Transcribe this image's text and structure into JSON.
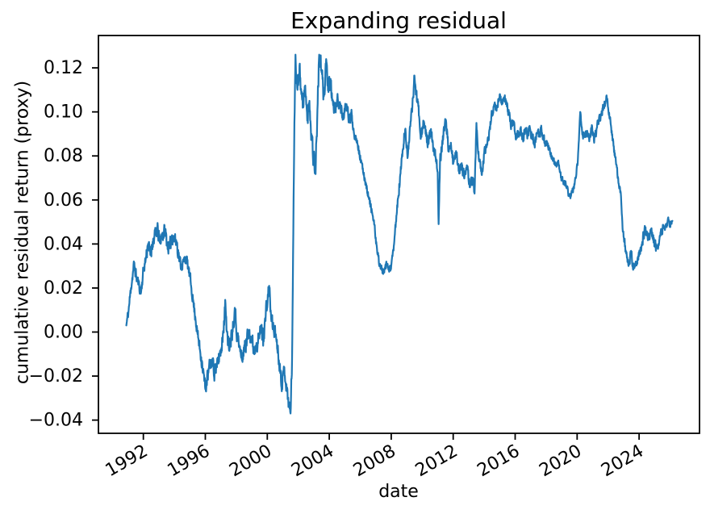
{
  "chart_data": {
    "type": "line",
    "title": "Expanding residual",
    "xlabel": "date",
    "ylabel": "cumulative residual return (proxy)",
    "grid": false,
    "legend": false,
    "xlim": [
      1989.1,
      2027.9
    ],
    "ylim": [
      -0.046,
      0.1347
    ],
    "x_ticks": [
      1992,
      1996,
      2000,
      2004,
      2008,
      2012,
      2016,
      2020,
      2024
    ],
    "x_tick_rotation": -30,
    "y_ticks": [
      -0.04,
      -0.02,
      0.0,
      0.02,
      0.04,
      0.06,
      0.08,
      0.1,
      0.12
    ],
    "colors": {
      "text": "#000000",
      "spines": "#000000",
      "background": "#ffffff"
    },
    "samples_per_year": 60,
    "seed": 11,
    "jitter_eras": [
      [
        1990.9,
        0.0028
      ],
      [
        1992.1,
        0.0038
      ],
      [
        1994.3,
        0.0028
      ],
      [
        1995.55,
        0.0036
      ],
      [
        1996.55,
        0.0042
      ],
      [
        2000.35,
        0.0036
      ],
      [
        2001.55,
        0.004
      ],
      [
        2001.85,
        0.0052
      ],
      [
        2004.2,
        0.003
      ],
      [
        2005.6,
        0.0018
      ],
      [
        2008.2,
        0.003
      ],
      [
        2009.8,
        0.003
      ],
      [
        2011.6,
        0.0026
      ],
      [
        2013.9,
        0.0022
      ],
      [
        2016.1,
        0.0024
      ],
      [
        2018.05,
        0.0017
      ],
      [
        2020.3,
        0.0022
      ],
      [
        2022.2,
        0.0018
      ],
      [
        2023.05,
        0.0026
      ],
      [
        2025.55,
        0.0017
      ]
    ],
    "series": [
      {
        "name": "cumulative residual return (proxy)",
        "color": "#1f77b4",
        "points": [
          [
            1990.9,
            0.003
          ],
          [
            1991.05,
            0.01
          ],
          [
            1991.2,
            0.02
          ],
          [
            1991.4,
            0.031
          ],
          [
            1991.55,
            0.025
          ],
          [
            1991.7,
            0.022
          ],
          [
            1991.85,
            0.018
          ],
          [
            1992.0,
            0.028
          ],
          [
            1992.15,
            0.033
          ],
          [
            1992.3,
            0.04
          ],
          [
            1992.45,
            0.035
          ],
          [
            1992.6,
            0.041
          ],
          [
            1992.75,
            0.044
          ],
          [
            1992.9,
            0.047
          ],
          [
            1993.05,
            0.041
          ],
          [
            1993.2,
            0.044
          ],
          [
            1993.4,
            0.046
          ],
          [
            1993.55,
            0.04
          ],
          [
            1993.7,
            0.038
          ],
          [
            1993.85,
            0.044
          ],
          [
            1994.0,
            0.042
          ],
          [
            1994.15,
            0.041
          ],
          [
            1994.3,
            0.034
          ],
          [
            1994.45,
            0.03
          ],
          [
            1994.6,
            0.032
          ],
          [
            1994.75,
            0.034
          ],
          [
            1994.9,
            0.029
          ],
          [
            1995.05,
            0.023
          ],
          [
            1995.2,
            0.015
          ],
          [
            1995.35,
            0.007
          ],
          [
            1995.5,
            -0.001
          ],
          [
            1995.65,
            -0.008
          ],
          [
            1995.8,
            -0.014
          ],
          [
            1996.0,
            -0.026
          ],
          [
            1996.15,
            -0.02
          ],
          [
            1996.3,
            -0.015
          ],
          [
            1996.45,
            -0.013
          ],
          [
            1996.6,
            -0.018
          ],
          [
            1996.75,
            -0.016
          ],
          [
            1996.9,
            -0.011
          ],
          [
            1997.05,
            -0.007
          ],
          [
            1997.2,
            0.005
          ],
          [
            1997.3,
            0.013
          ],
          [
            1997.45,
            -0.006
          ],
          [
            1997.6,
            -0.004
          ],
          [
            1997.75,
            0.001
          ],
          [
            1997.9,
            0.011
          ],
          [
            1998.05,
            -0.001
          ],
          [
            1998.2,
            -0.007
          ],
          [
            1998.35,
            -0.012
          ],
          [
            1998.5,
            -0.008
          ],
          [
            1998.65,
            -0.004
          ],
          [
            1998.85,
            0.001
          ],
          [
            1999.0,
            -0.004
          ],
          [
            1999.15,
            -0.008
          ],
          [
            1999.3,
            -0.005
          ],
          [
            1999.45,
            -0.003
          ],
          [
            1999.6,
            0.002
          ],
          [
            1999.75,
            -0.003
          ],
          [
            1999.9,
            0.008
          ],
          [
            2000.05,
            0.016
          ],
          [
            2000.12,
            0.021
          ],
          [
            2000.25,
            0.006
          ],
          [
            2000.4,
            0.002
          ],
          [
            2000.55,
            -0.001
          ],
          [
            2000.7,
            -0.009
          ],
          [
            2000.85,
            -0.018
          ],
          [
            2000.95,
            -0.024
          ],
          [
            2001.1,
            -0.016
          ],
          [
            2001.25,
            -0.026
          ],
          [
            2001.4,
            -0.033
          ],
          [
            2001.5,
            -0.037
          ],
          [
            2001.6,
            -0.012
          ],
          [
            2001.68,
            0.045
          ],
          [
            2001.75,
            0.095
          ],
          [
            2001.82,
            0.126
          ],
          [
            2001.95,
            0.11
          ],
          [
            2002.08,
            0.121
          ],
          [
            2002.2,
            0.108
          ],
          [
            2002.32,
            0.102
          ],
          [
            2002.45,
            0.112
          ],
          [
            2002.58,
            0.096
          ],
          [
            2002.72,
            0.105
          ],
          [
            2002.85,
            0.09
          ],
          [
            2002.98,
            0.08
          ],
          [
            2003.1,
            0.072
          ],
          [
            2003.22,
            0.096
          ],
          [
            2003.35,
            0.126
          ],
          [
            2003.5,
            0.118
          ],
          [
            2003.65,
            0.107
          ],
          [
            2003.8,
            0.124
          ],
          [
            2003.95,
            0.109
          ],
          [
            2004.1,
            0.112
          ],
          [
            2004.25,
            0.103
          ],
          [
            2004.4,
            0.101
          ],
          [
            2004.55,
            0.106
          ],
          [
            2004.7,
            0.103
          ],
          [
            2004.85,
            0.098
          ],
          [
            2005.0,
            0.1
          ],
          [
            2005.15,
            0.102
          ],
          [
            2005.3,
            0.096
          ],
          [
            2005.45,
            0.099
          ],
          [
            2005.6,
            0.09
          ],
          [
            2005.8,
            0.087
          ],
          [
            2005.95,
            0.081
          ],
          [
            2006.15,
            0.074
          ],
          [
            2006.35,
            0.068
          ],
          [
            2006.55,
            0.061
          ],
          [
            2006.75,
            0.055
          ],
          [
            2006.95,
            0.046
          ],
          [
            2007.1,
            0.036
          ],
          [
            2007.25,
            0.031
          ],
          [
            2007.4,
            0.028
          ],
          [
            2007.55,
            0.027
          ],
          [
            2007.7,
            0.031
          ],
          [
            2007.85,
            0.028
          ],
          [
            2008.0,
            0.03
          ],
          [
            2008.15,
            0.037
          ],
          [
            2008.3,
            0.05
          ],
          [
            2008.45,
            0.061
          ],
          [
            2008.6,
            0.072
          ],
          [
            2008.75,
            0.083
          ],
          [
            2008.9,
            0.092
          ],
          [
            2009.05,
            0.079
          ],
          [
            2009.2,
            0.093
          ],
          [
            2009.35,
            0.1
          ],
          [
            2009.5,
            0.1165
          ],
          [
            2009.62,
            0.108
          ],
          [
            2009.75,
            0.1025
          ],
          [
            2009.92,
            0.0895
          ],
          [
            2010.1,
            0.0958
          ],
          [
            2010.25,
            0.089
          ],
          [
            2010.4,
            0.086
          ],
          [
            2010.55,
            0.091
          ],
          [
            2010.7,
            0.084
          ],
          [
            2010.85,
            0.0795
          ],
          [
            2011.0,
            0.0727
          ],
          [
            2011.06,
            0.049
          ],
          [
            2011.15,
            0.078
          ],
          [
            2011.3,
            0.087
          ],
          [
            2011.45,
            0.0935
          ],
          [
            2011.55,
            0.0951
          ],
          [
            2011.7,
            0.0823
          ],
          [
            2011.85,
            0.086
          ],
          [
            2012.0,
            0.0764
          ],
          [
            2012.2,
            0.0812
          ],
          [
            2012.4,
            0.0727
          ],
          [
            2012.55,
            0.0767
          ],
          [
            2012.7,
            0.0702
          ],
          [
            2012.9,
            0.0738
          ],
          [
            2013.1,
            0.0665
          ],
          [
            2013.25,
            0.0702
          ],
          [
            2013.38,
            0.0629
          ],
          [
            2013.5,
            0.095
          ],
          [
            2013.65,
            0.0786
          ],
          [
            2013.85,
            0.0713
          ],
          [
            2014.0,
            0.0812
          ],
          [
            2014.2,
            0.085
          ],
          [
            2014.35,
            0.092
          ],
          [
            2014.5,
            0.0995
          ],
          [
            2014.65,
            0.1035
          ],
          [
            2014.8,
            0.1005
          ],
          [
            2015.0,
            0.1079
          ],
          [
            2015.15,
            0.1035
          ],
          [
            2015.3,
            0.1068
          ],
          [
            2015.45,
            0.1042
          ],
          [
            2015.6,
            0.0988
          ],
          [
            2015.75,
            0.094
          ],
          [
            2015.9,
            0.0958
          ],
          [
            2016.05,
            0.0874
          ],
          [
            2016.2,
            0.0905
          ],
          [
            2016.35,
            0.0921
          ],
          [
            2016.5,
            0.0878
          ],
          [
            2016.65,
            0.0914
          ],
          [
            2016.8,
            0.0895
          ],
          [
            2016.95,
            0.0929
          ],
          [
            2017.1,
            0.0888
          ],
          [
            2017.25,
            0.0848
          ],
          [
            2017.4,
            0.0902
          ],
          [
            2017.55,
            0.0888
          ],
          [
            2017.7,
            0.0921
          ],
          [
            2017.85,
            0.0878
          ],
          [
            2018.0,
            0.0848
          ],
          [
            2018.2,
            0.0837
          ],
          [
            2018.4,
            0.0784
          ],
          [
            2018.6,
            0.076
          ],
          [
            2018.8,
            0.0767
          ],
          [
            2019.0,
            0.0694
          ],
          [
            2019.15,
            0.0684
          ],
          [
            2019.3,
            0.0665
          ],
          [
            2019.45,
            0.0625
          ],
          [
            2019.6,
            0.0617
          ],
          [
            2019.75,
            0.0648
          ],
          [
            2019.9,
            0.0698
          ],
          [
            2020.05,
            0.0786
          ],
          [
            2020.2,
            0.1
          ],
          [
            2020.35,
            0.0905
          ],
          [
            2020.5,
            0.0885
          ],
          [
            2020.65,
            0.0914
          ],
          [
            2020.8,
            0.0878
          ],
          [
            2020.95,
            0.094
          ],
          [
            2021.1,
            0.086
          ],
          [
            2021.25,
            0.0921
          ],
          [
            2021.4,
            0.0958
          ],
          [
            2021.55,
            0.0984
          ],
          [
            2021.7,
            0.1022
          ],
          [
            2021.9,
            0.1075
          ],
          [
            2022.05,
            0.0985
          ],
          [
            2022.2,
            0.0928
          ],
          [
            2022.35,
            0.0845
          ],
          [
            2022.5,
            0.0775
          ],
          [
            2022.65,
            0.0698
          ],
          [
            2022.8,
            0.064
          ],
          [
            2022.95,
            0.0456
          ],
          [
            2023.1,
            0.0392
          ],
          [
            2023.25,
            0.0318
          ],
          [
            2023.35,
            0.0306
          ],
          [
            2023.5,
            0.0361
          ],
          [
            2023.6,
            0.0288
          ],
          [
            2023.75,
            0.0308
          ],
          [
            2023.9,
            0.0335
          ],
          [
            2024.05,
            0.0365
          ],
          [
            2024.2,
            0.0409
          ],
          [
            2024.4,
            0.0471
          ],
          [
            2024.55,
            0.0427
          ],
          [
            2024.7,
            0.0445
          ],
          [
            2024.85,
            0.0452
          ],
          [
            2025.0,
            0.0398
          ],
          [
            2025.15,
            0.0388
          ],
          [
            2025.3,
            0.0415
          ],
          [
            2025.45,
            0.0456
          ],
          [
            2025.6,
            0.0472
          ],
          [
            2025.75,
            0.0489
          ],
          [
            2025.9,
            0.0507
          ],
          [
            2026.0,
            0.0482
          ],
          [
            2026.15,
            0.0505
          ]
        ]
      }
    ]
  }
}
